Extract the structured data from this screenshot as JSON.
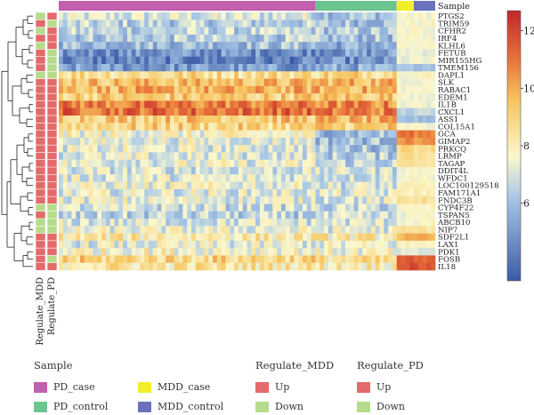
{
  "chart_data": {
    "type": "heatmap",
    "title": "",
    "top_annotation": {
      "label": "Sample",
      "groups": [
        {
          "name": "PD_case",
          "count": 60,
          "color": "#c25fae"
        },
        {
          "name": "PD_control",
          "count": 19,
          "color": "#6cc48f"
        },
        {
          "name": "MDD_case",
          "count": 4,
          "color": "#f2ee2a"
        },
        {
          "name": "MDD_control",
          "count": 5,
          "color": "#6a72bc"
        }
      ]
    },
    "genes": [
      "PTGS2",
      "TRIM59",
      "CFHR2",
      "IRF4",
      "KLHL6",
      "FETUB",
      "MIR155HG",
      "TMEM156",
      "DAPL1",
      "SLK",
      "RABAC1",
      "EDEM1",
      "IL1B",
      "CXCL1",
      "ASS1",
      "COL15A1",
      "GCA",
      "GIMAP2",
      "PRKCQ",
      "LRMP",
      "TAGAP",
      "DDIT4L",
      "WFDC1",
      "LOC100129518",
      "FAM171A1",
      "FNDC3B",
      "CYP4F22",
      "TSPAN5",
      "ABCB10",
      "NIP7",
      "SDF2L1",
      "LAX1",
      "PDK1",
      "FOSB",
      "IL18"
    ],
    "row_annotations": [
      {
        "label": "Regulate_MDD",
        "values": [
          "Down",
          "Up",
          "Down",
          "Up",
          "Down",
          "Up",
          "Up",
          "Up",
          "Down",
          "Up",
          "Up",
          "Up",
          "Up",
          "Up",
          "Up",
          "Up",
          "Up",
          "Up",
          "Up",
          "Up",
          "Up",
          "Up",
          "Up",
          "Up",
          "Up",
          "Up",
          "Down",
          "Up",
          "Down",
          "Down",
          "Up",
          "Up",
          "Up",
          "Up",
          "Up"
        ]
      },
      {
        "label": "Regulate_PD",
        "values": [
          "Up",
          "Down",
          "Up",
          "Up",
          "Up",
          "Down",
          "Down",
          "Down",
          "Down",
          "Up",
          "Up",
          "Up",
          "Up",
          "Up",
          "Up",
          "Up",
          "Up",
          "Up",
          "Up",
          "Up",
          "Up",
          "Up",
          "Up",
          "Up",
          "Up",
          "Up",
          "Down",
          "Down",
          "Down",
          "Down",
          "Up",
          "Up",
          "Up",
          "Down",
          "Up"
        ]
      }
    ],
    "row_levels": [
      {
        "pd_case": 7.0,
        "pd_control": 6.2,
        "mdd_case": 7.6,
        "mdd_control": 7.6
      },
      {
        "pd_case": 6.4,
        "pd_control": 6.1,
        "mdd_case": 7.6,
        "mdd_control": 7.6
      },
      {
        "pd_case": 6.5,
        "pd_control": 6.2,
        "mdd_case": 7.6,
        "mdd_control": 7.6
      },
      {
        "pd_case": 6.3,
        "pd_control": 6.0,
        "mdd_case": 7.5,
        "mdd_control": 7.6
      },
      {
        "pd_case": 6.0,
        "pd_control": 5.5,
        "mdd_case": 7.5,
        "mdd_control": 7.5
      },
      {
        "pd_case": 4.8,
        "pd_control": 5.0,
        "mdd_case": 7.4,
        "mdd_control": 7.4
      },
      {
        "pd_case": 4.3,
        "pd_control": 4.6,
        "mdd_case": 7.3,
        "mdd_control": 7.4
      },
      {
        "pd_case": 5.0,
        "pd_control": 5.4,
        "mdd_case": 6.0,
        "mdd_control": 6.2
      },
      {
        "pd_case": 8.8,
        "pd_control": 9.0,
        "mdd_case": 7.8,
        "mdd_control": 7.8
      },
      {
        "pd_case": 9.6,
        "pd_control": 9.8,
        "mdd_case": 7.6,
        "mdd_control": 7.6
      },
      {
        "pd_case": 9.8,
        "pd_control": 9.8,
        "mdd_case": 7.6,
        "mdd_control": 7.6
      },
      {
        "pd_case": 9.2,
        "pd_control": 9.4,
        "mdd_case": 7.6,
        "mdd_control": 7.6
      },
      {
        "pd_case": 10.8,
        "pd_control": 10.6,
        "mdd_case": 7.5,
        "mdd_control": 7.5
      },
      {
        "pd_case": 11.2,
        "pd_control": 10.8,
        "mdd_case": 6.5,
        "mdd_control": 6.6
      },
      {
        "pd_case": 9.4,
        "pd_control": 9.6,
        "mdd_case": 6.0,
        "mdd_control": 6.0
      },
      {
        "pd_case": 9.0,
        "pd_control": 9.2,
        "mdd_case": 7.5,
        "mdd_control": 7.5
      },
      {
        "pd_case": 7.6,
        "pd_control": 6.0,
        "mdd_case": 11.0,
        "mdd_control": 10.8
      },
      {
        "pd_case": 7.3,
        "pd_control": 6.0,
        "mdd_case": 10.5,
        "mdd_control": 10.4
      },
      {
        "pd_case": 7.2,
        "pd_control": 6.1,
        "mdd_case": 9.0,
        "mdd_control": 8.8
      },
      {
        "pd_case": 7.1,
        "pd_control": 6.3,
        "mdd_case": 8.8,
        "mdd_control": 8.6
      },
      {
        "pd_case": 7.3,
        "pd_control": 6.6,
        "mdd_case": 8.4,
        "mdd_control": 8.4
      },
      {
        "pd_case": 7.0,
        "pd_control": 6.9,
        "mdd_case": 7.6,
        "mdd_control": 7.6
      },
      {
        "pd_case": 7.2,
        "pd_control": 7.0,
        "mdd_case": 7.7,
        "mdd_control": 7.7
      },
      {
        "pd_case": 7.4,
        "pd_control": 7.0,
        "mdd_case": 7.8,
        "mdd_control": 7.8
      },
      {
        "pd_case": 7.2,
        "pd_control": 7.1,
        "mdd_case": 8.0,
        "mdd_control": 8.0
      },
      {
        "pd_case": 7.3,
        "pd_control": 7.1,
        "mdd_case": 8.6,
        "mdd_control": 8.6
      },
      {
        "pd_case": 6.8,
        "pd_control": 6.6,
        "mdd_case": 7.6,
        "mdd_control": 7.6
      },
      {
        "pd_case": 6.4,
        "pd_control": 6.5,
        "mdd_case": 7.5,
        "mdd_control": 7.6
      },
      {
        "pd_case": 7.0,
        "pd_control": 7.0,
        "mdd_case": 7.6,
        "mdd_control": 7.6
      },
      {
        "pd_case": 7.3,
        "pd_control": 7.2,
        "mdd_case": 8.4,
        "mdd_control": 8.4
      },
      {
        "pd_case": 8.2,
        "pd_control": 8.2,
        "mdd_case": 9.8,
        "mdd_control": 9.8
      },
      {
        "pd_case": 7.2,
        "pd_control": 7.3,
        "mdd_case": 7.8,
        "mdd_control": 7.8
      },
      {
        "pd_case": 7.8,
        "pd_control": 7.5,
        "mdd_case": 7.0,
        "mdd_control": 7.0
      },
      {
        "pd_case": 9.0,
        "pd_control": 8.5,
        "mdd_case": 11.4,
        "mdd_control": 11.2
      },
      {
        "pd_case": 8.4,
        "pd_control": 8.2,
        "mdd_case": 11.8,
        "mdd_control": 11.6
      }
    ],
    "color_scale": {
      "ticks": [
        6,
        8,
        10,
        12
      ],
      "range": [
        3.3,
        12.7
      ],
      "stops": [
        {
          "value": 3.3,
          "color": "#3b5ba8"
        },
        {
          "value": 6.2,
          "color": "#a9c8e6"
        },
        {
          "value": 7.6,
          "color": "#fbf8ce"
        },
        {
          "value": 9.6,
          "color": "#f6c55e"
        },
        {
          "value": 11.0,
          "color": "#e8733a"
        },
        {
          "value": 12.7,
          "color": "#c0282a"
        }
      ]
    },
    "legend": {
      "sample_title": "Sample",
      "sample_items": [
        {
          "label": "PD_case",
          "color": "#c25fae"
        },
        {
          "label": "PD_control",
          "color": "#6cc48f"
        },
        {
          "label": "MDD_case",
          "color": "#f2ee2a"
        },
        {
          "label": "MDD_control",
          "color": "#6a72bc"
        }
      ],
      "regulate_mdd_title": "Regulate_MDD",
      "regulate_mdd_items": [
        {
          "label": "Up",
          "color": "#e36a6a"
        },
        {
          "label": "Down",
          "color": "#b5dc8c"
        }
      ],
      "regulate_pd_title": "Regulate_PD",
      "regulate_pd_items": [
        {
          "label": "Up",
          "color": "#e36a6a"
        },
        {
          "label": "Down",
          "color": "#b5dc8c"
        }
      ]
    }
  }
}
